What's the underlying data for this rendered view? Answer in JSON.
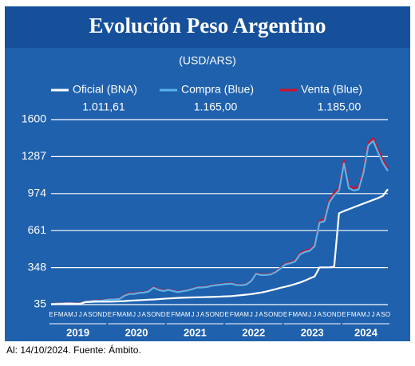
{
  "chart_data": {
    "type": "line",
    "title": "Evolución Peso Argentino",
    "subtitle": "(USD/ARS)",
    "footnote": "Al: 14/10/2024. Fuente: Ámbito.",
    "categories": [
      "E",
      "F",
      "M",
      "A",
      "M",
      "J",
      "J",
      "A",
      "S",
      "O",
      "N",
      "D",
      "E",
      "F",
      "M",
      "A",
      "M",
      "J",
      "J",
      "A",
      "S",
      "O",
      "N",
      "D",
      "E",
      "F",
      "M",
      "A",
      "M",
      "J",
      "J",
      "A",
      "S",
      "O",
      "N",
      "D",
      "E",
      "F",
      "M",
      "A",
      "M",
      "J",
      "J",
      "A",
      "S",
      "O",
      "N",
      "D",
      "E",
      "F",
      "M",
      "A",
      "M",
      "J",
      "J",
      "A",
      "S",
      "O",
      "N",
      "D",
      "E",
      "F",
      "M",
      "A",
      "M",
      "J",
      "J",
      "A",
      "S",
      "O"
    ],
    "years": [
      "2019",
      "2020",
      "2021",
      "2022",
      "2023",
      "2024"
    ],
    "ylim": [
      35,
      1600
    ],
    "yticks": [
      35,
      348,
      661,
      974,
      1287,
      1600
    ],
    "grid": true,
    "series": [
      {
        "name": "Venta (Blue)",
        "color": "#d0112b",
        "last_label": "1.185,00",
        "values": [
          43,
          46,
          47,
          48,
          48,
          46,
          46,
          62,
          65,
          71,
          70,
          75,
          80,
          81,
          85,
          115,
          130,
          128,
          138,
          139,
          149,
          182,
          165,
          155,
          162,
          153,
          144,
          151,
          158,
          170,
          183,
          183,
          188,
          198,
          203,
          208,
          213,
          215,
          203,
          202,
          208,
          239,
          300,
          290,
          290,
          295,
          315,
          346,
          382,
          392,
          408,
          470,
          492,
          500,
          543,
          745,
          755,
          920,
          980,
          1020,
          1255,
          1040,
          1020,
          1030,
          1175,
          1405,
          1445,
          1345,
          1255,
          1185
        ]
      },
      {
        "name": "Compra (Blue)",
        "color": "#5ab4ea",
        "last_label": "1.165,00",
        "values": [
          41,
          44,
          45,
          46,
          46,
          44,
          44,
          60,
          63,
          68,
          67,
          72,
          78,
          79,
          82,
          110,
          125,
          125,
          135,
          136,
          146,
          178,
          160,
          150,
          159,
          150,
          141,
          148,
          155,
          167,
          180,
          180,
          185,
          195,
          200,
          205,
          210,
          212,
          200,
          199,
          205,
          235,
          296,
          285,
          285,
          290,
          310,
          340,
          375,
          385,
          400,
          460,
          480,
          490,
          530,
          730,
          740,
          900,
          960,
          1000,
          1230,
          1020,
          1000,
          1010,
          1150,
          1380,
          1420,
          1320,
          1230,
          1165
        ]
      },
      {
        "name": "Oficial (BNA)",
        "color": "#ffffff",
        "last_label": "1.011,61",
        "values": [
          38,
          39,
          39,
          43,
          44,
          42,
          42,
          55,
          57,
          59,
          60,
          60,
          60,
          61,
          63,
          65,
          68,
          70,
          72,
          74,
          76,
          78,
          81,
          84,
          87,
          89,
          92,
          93,
          95,
          96,
          97,
          98,
          99,
          100,
          101,
          103,
          105,
          107,
          111,
          115,
          119,
          124,
          130,
          137,
          145,
          155,
          165,
          177,
          186,
          197,
          209,
          222,
          238,
          256,
          274,
          350,
          350,
          350,
          355,
          808,
          826,
          842,
          858,
          874,
          890,
          905,
          921,
          936,
          956,
          1011.61
        ]
      }
    ]
  }
}
